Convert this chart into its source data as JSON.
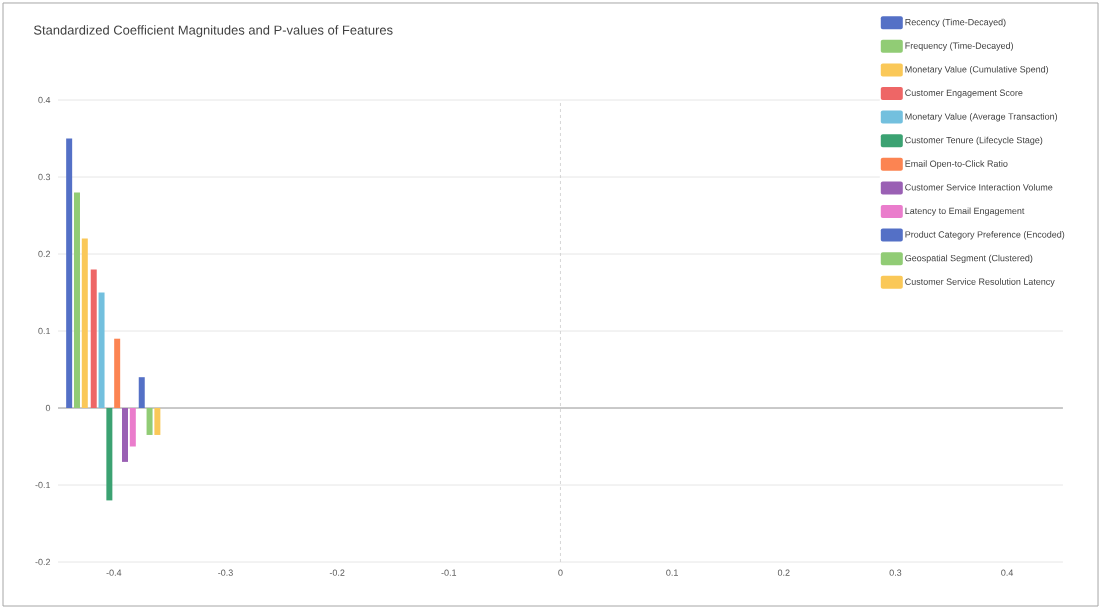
{
  "chart_data": {
    "type": "bar",
    "title": "Standardized Coefficient Magnitudes and P-values of Features",
    "series": [
      {
        "name": "Recency (Time-Decayed)",
        "color": "#5470c6",
        "x": [
          -0.44
        ],
        "values": [
          0.35
        ]
      },
      {
        "name": "Frequency (Time-Decayed)",
        "color": "#91cc75",
        "x": [
          -0.433
        ],
        "values": [
          0.28
        ]
      },
      {
        "name": "Monetary Value (Cumulative Spend)",
        "color": "#fac858",
        "x": [
          -0.426
        ],
        "values": [
          0.22
        ]
      },
      {
        "name": "Customer Engagement Score",
        "color": "#ee6666",
        "x": [
          -0.418
        ],
        "values": [
          0.18
        ]
      },
      {
        "name": "Monetary Value (Average Transaction)",
        "color": "#73c0de",
        "x": [
          -0.411
        ],
        "values": [
          0.15
        ]
      },
      {
        "name": "Customer Tenure (Lifecycle Stage)",
        "color": "#3ba272",
        "x": [
          -0.404
        ],
        "values": [
          -0.12
        ]
      },
      {
        "name": "Email Open-to-Click Ratio",
        "color": "#fc8452",
        "x": [
          -0.397
        ],
        "values": [
          0.09
        ]
      },
      {
        "name": "Customer Service Interaction Volume",
        "color": "#9a60b4",
        "x": [
          -0.39
        ],
        "values": [
          -0.07
        ]
      },
      {
        "name": "Latency to Email Engagement",
        "color": "#ea7ccc",
        "x": [
          -0.383
        ],
        "values": [
          -0.05
        ]
      },
      {
        "name": "Product Category Preference (Encoded)",
        "color": "#5470c6",
        "x": [
          -0.375
        ],
        "values": [
          0.04
        ]
      },
      {
        "name": "Geospatial Segment (Clustered)",
        "color": "#91cc75",
        "x": [
          -0.368
        ],
        "values": [
          -0.035
        ]
      },
      {
        "name": "Customer Service Resolution Latency",
        "color": "#fac858",
        "x": [
          -0.361
        ],
        "values": [
          -0.035
        ]
      }
    ],
    "xlim": [
      -0.45,
      0.45
    ],
    "ylim": [
      -0.2,
      0.4
    ],
    "xticks": [
      -0.4,
      -0.3,
      -0.2,
      -0.1,
      0,
      0.1,
      0.2,
      0.3,
      0.4
    ],
    "yticks": [
      -0.2,
      -0.1,
      0,
      0.1,
      0.2,
      0.3,
      0.4
    ],
    "grid": "y",
    "legend": "top right",
    "ref_lines": [
      {
        "axis": "x",
        "value": 0,
        "color": "#cccccc",
        "line_style": "dashed"
      }
    ]
  }
}
